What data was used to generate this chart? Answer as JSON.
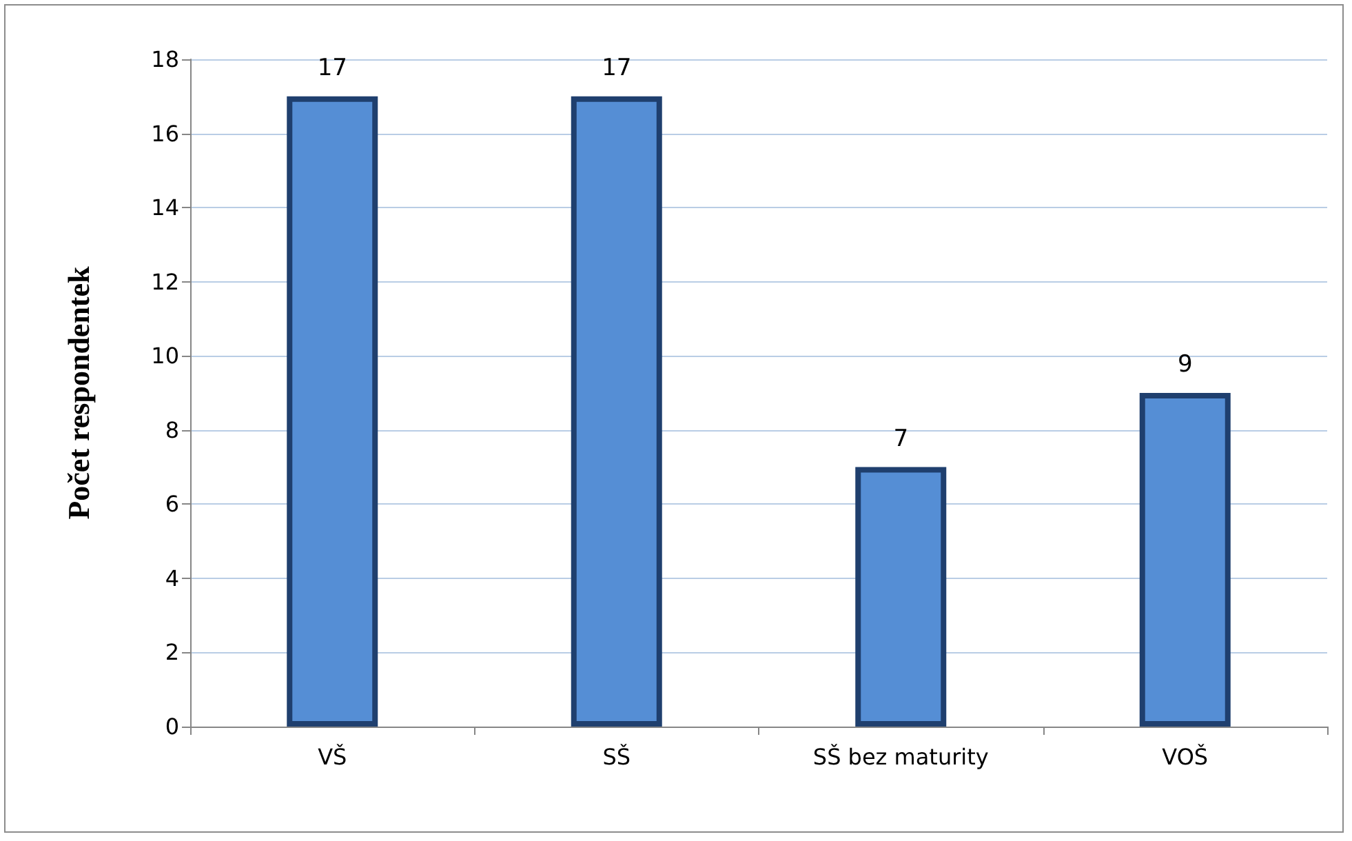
{
  "chart_data": {
    "type": "bar",
    "ylabel": "Počet respondentek",
    "categories": [
      "VŠ",
      "SŠ",
      "SŠ bez maturity",
      "VOŠ"
    ],
    "values": [
      17,
      17,
      7,
      9
    ],
    "color": "#558ed5",
    "ylim": [
      0,
      18
    ],
    "yticks": [
      0,
      2,
      4,
      6,
      8,
      10,
      12,
      14,
      16,
      18
    ],
    "grid": "y",
    "data_labels": true
  }
}
